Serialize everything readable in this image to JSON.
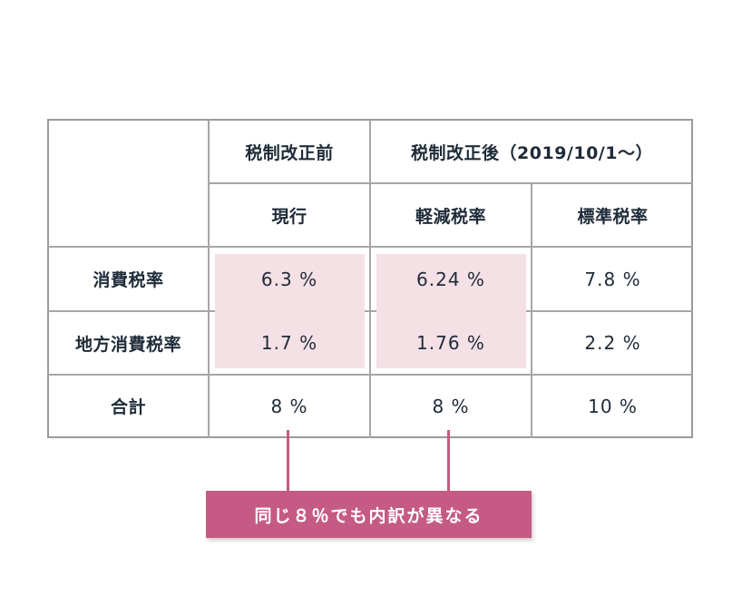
{
  "table": {
    "header": {
      "before": "税制改正前",
      "after": "税制改正後（2019/10/1〜）",
      "current": "現行",
      "reduced": "軽減税率",
      "standard": "標準税率"
    },
    "rows": [
      {
        "label": "消費税率",
        "current": "6.3 %",
        "reduced": "6.24 %",
        "standard": "7.8 %"
      },
      {
        "label": "地方消費税率",
        "current": "1.7 %",
        "reduced": "1.76 %",
        "standard": "2.2 %"
      },
      {
        "label": "合計",
        "current": "8 %",
        "reduced": "8 %",
        "standard": "10 %"
      }
    ]
  },
  "callout": {
    "text": "同じ８％でも内訳が異なる"
  },
  "colors": {
    "accent": "#c55b84",
    "highlight": "#f5e0e6",
    "border": "#9a9a9a",
    "text": "#1f2b38"
  }
}
